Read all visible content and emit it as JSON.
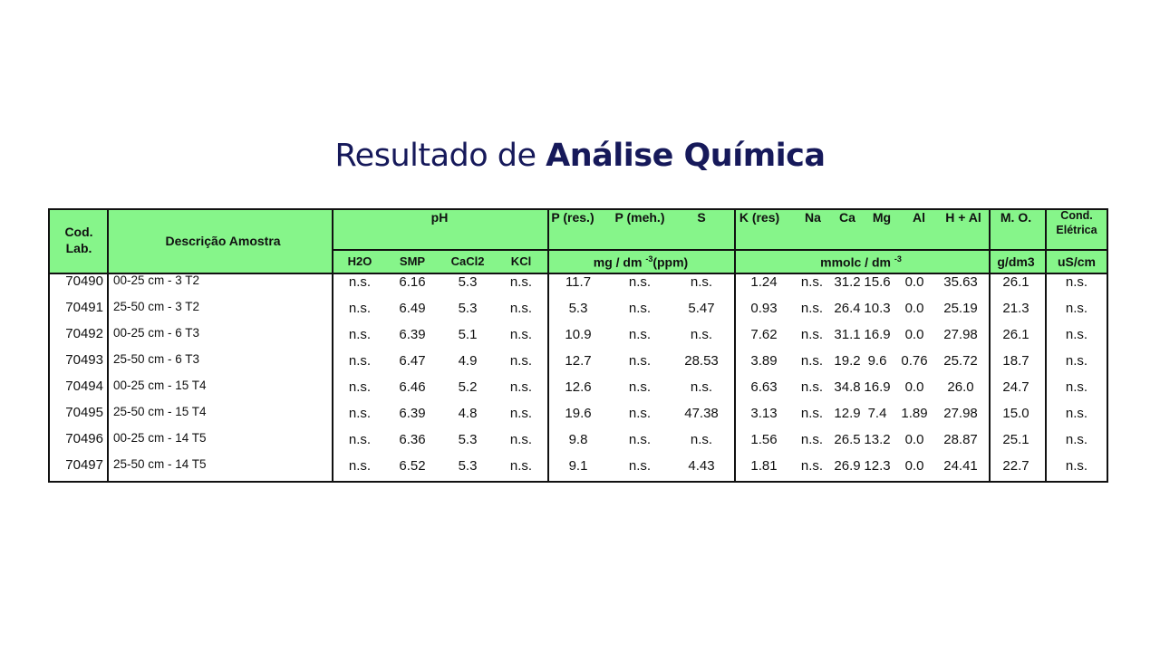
{
  "title": {
    "regular": "Resultado de ",
    "bold": "Análise Química"
  },
  "colors": {
    "header_bg": "#86f58a",
    "title": "#16195a",
    "border": "#111111"
  },
  "table": {
    "header": {
      "cod": [
        "Cod.",
        "Lab."
      ],
      "descricao": "Descrição Amostra",
      "ph": "pH",
      "ph_sub": [
        "H2O",
        "SMP",
        "CaCl2",
        "KCl"
      ],
      "p_res": "P (res.)",
      "p_meh": "P (meh.)",
      "s": "S",
      "unit_mg": "mg / dm -3(ppm)",
      "k_res": "K (res)",
      "na": "Na",
      "ca": "Ca",
      "mg": "Mg",
      "al": "Al",
      "h_al": "H + Al",
      "unit_mmolc": "mmolc / dm -3",
      "mo": "M. O.",
      "unit_mo": "g/dm3",
      "cond": [
        "Cond.",
        "Elétrica"
      ],
      "unit_cond": "uS/cm"
    },
    "rows": [
      [
        "70490",
        "00-25 cm - 3 T2",
        "n.s.",
        "6.16",
        "5.3",
        "n.s.",
        "11.7",
        "n.s.",
        "n.s.",
        "1.24",
        "n.s.",
        "31.2",
        "15.6",
        "0.0",
        "35.63",
        "26.1",
        "n.s."
      ],
      [
        "70491",
        "25-50 cm - 3 T2",
        "n.s.",
        "6.49",
        "5.3",
        "n.s.",
        "5.3",
        "n.s.",
        "5.47",
        "0.93",
        "n.s.",
        "26.4",
        "10.3",
        "0.0",
        "25.19",
        "21.3",
        "n.s."
      ],
      [
        "70492",
        "00-25 cm - 6 T3",
        "n.s.",
        "6.39",
        "5.1",
        "n.s.",
        "10.9",
        "n.s.",
        "n.s.",
        "7.62",
        "n.s.",
        "31.1",
        "16.9",
        "0.0",
        "27.98",
        "26.1",
        "n.s."
      ],
      [
        "70493",
        "25-50 cm - 6 T3",
        "n.s.",
        "6.47",
        "4.9",
        "n.s.",
        "12.7",
        "n.s.",
        "28.53",
        "3.89",
        "n.s.",
        "19.2",
        "9.6",
        "0.76",
        "25.72",
        "18.7",
        "n.s."
      ],
      [
        "70494",
        "00-25 cm - 15 T4",
        "n.s.",
        "6.46",
        "5.2",
        "n.s.",
        "12.6",
        "n.s.",
        "n.s.",
        "6.63",
        "n.s.",
        "34.8",
        "16.9",
        "0.0",
        "26.0",
        "24.7",
        "n.s."
      ],
      [
        "70495",
        "25-50 cm - 15 T4",
        "n.s.",
        "6.39",
        "4.8",
        "n.s.",
        "19.6",
        "n.s.",
        "47.38",
        "3.13",
        "n.s.",
        "12.9",
        "7.4",
        "1.89",
        "27.98",
        "15.0",
        "n.s."
      ],
      [
        "70496",
        "00-25 cm - 14 T5",
        "n.s.",
        "6.36",
        "5.3",
        "n.s.",
        "9.8",
        "n.s.",
        "n.s.",
        "1.56",
        "n.s.",
        "26.5",
        "13.2",
        "0.0",
        "28.87",
        "25.1",
        "n.s."
      ],
      [
        "70497",
        "25-50 cm - 14 T5",
        "n.s.",
        "6.52",
        "5.3",
        "n.s.",
        "9.1",
        "n.s.",
        "4.43",
        "1.81",
        "n.s.",
        "26.9",
        "12.3",
        "0.0",
        "24.41",
        "22.7",
        "n.s."
      ]
    ]
  }
}
